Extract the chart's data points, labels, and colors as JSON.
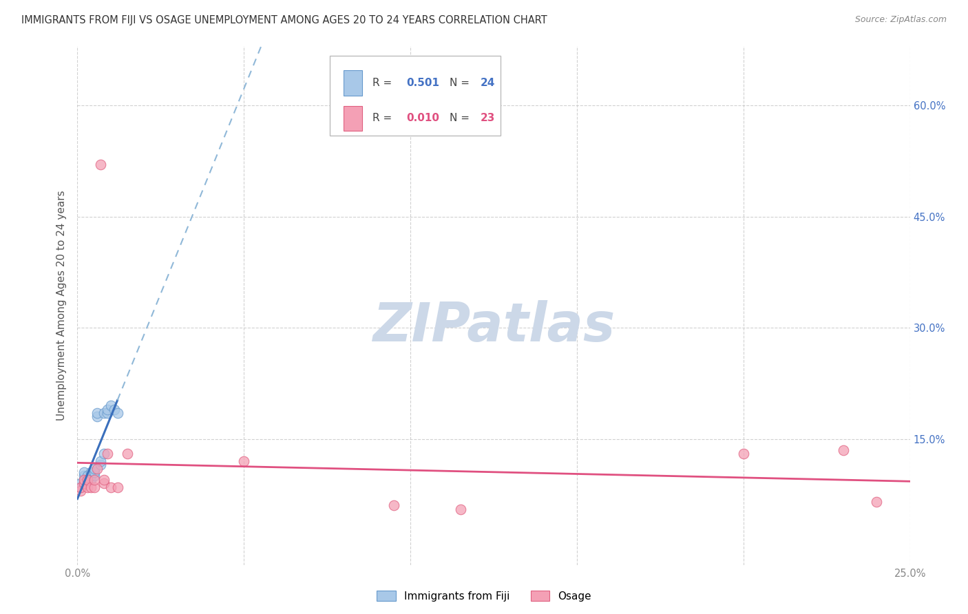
{
  "title": "IMMIGRANTS FROM FIJI VS OSAGE UNEMPLOYMENT AMONG AGES 20 TO 24 YEARS CORRELATION CHART",
  "source": "Source: ZipAtlas.com",
  "ylabel": "Unemployment Among Ages 20 to 24 years",
  "xlim": [
    0.0,
    0.25
  ],
  "ylim": [
    -0.02,
    0.68
  ],
  "xticks": [
    0.0,
    0.05,
    0.1,
    0.15,
    0.2,
    0.25
  ],
  "yticks": [
    0.15,
    0.3,
    0.45,
    0.6
  ],
  "ytick_labels": [
    "15.0%",
    "30.0%",
    "45.0%",
    "60.0%"
  ],
  "xtick_labels": [
    "0.0%",
    "",
    "",
    "",
    "",
    "25.0%"
  ],
  "fiji_color": "#a8c8e8",
  "fiji_edge_color": "#6699cc",
  "osage_color": "#f4a0b5",
  "osage_edge_color": "#e06080",
  "fiji_R": 0.501,
  "fiji_N": 24,
  "osage_R": 0.01,
  "osage_N": 23,
  "fiji_line_color": "#3a6fbc",
  "osage_line_color": "#e05080",
  "fiji_dashed_color": "#90b8d8",
  "background_color": "#ffffff",
  "grid_color": "#cccccc",
  "watermark_text": "ZIPatlas",
  "watermark_color": "#ccd8e8",
  "title_color": "#333333",
  "right_tick_color_blue": "#4472C4",
  "right_tick_color_pink": "#E84D7E",
  "fiji_scatter_x": [
    0.001,
    0.001,
    0.002,
    0.002,
    0.002,
    0.003,
    0.003,
    0.004,
    0.004,
    0.004,
    0.005,
    0.005,
    0.005,
    0.006,
    0.006,
    0.007,
    0.007,
    0.008,
    0.008,
    0.009,
    0.009,
    0.01,
    0.011,
    0.012
  ],
  "fiji_scatter_y": [
    0.085,
    0.09,
    0.095,
    0.1,
    0.105,
    0.095,
    0.1,
    0.095,
    0.1,
    0.105,
    0.1,
    0.105,
    0.11,
    0.18,
    0.185,
    0.115,
    0.12,
    0.13,
    0.185,
    0.185,
    0.19,
    0.195,
    0.19,
    0.185
  ],
  "osage_scatter_x": [
    0.001,
    0.001,
    0.002,
    0.002,
    0.003,
    0.003,
    0.004,
    0.005,
    0.005,
    0.006,
    0.007,
    0.008,
    0.008,
    0.009,
    0.01,
    0.012,
    0.015,
    0.05,
    0.095,
    0.115,
    0.2,
    0.23,
    0.24
  ],
  "osage_scatter_y": [
    0.08,
    0.085,
    0.09,
    0.095,
    0.085,
    0.095,
    0.085,
    0.085,
    0.095,
    0.11,
    0.52,
    0.09,
    0.095,
    0.13,
    0.085,
    0.085,
    0.13,
    0.12,
    0.06,
    0.055,
    0.13,
    0.135,
    0.065
  ],
  "marker_size": 110
}
